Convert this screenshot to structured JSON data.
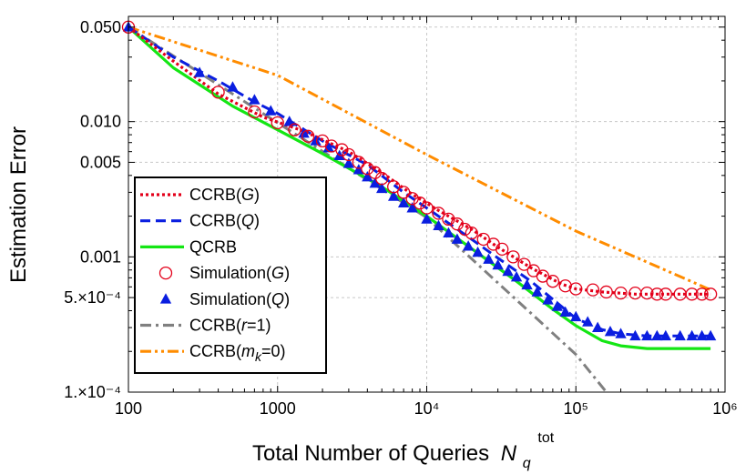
{
  "chart_data": {
    "type": "line",
    "xlabel": "Total Number of Queries",
    "xlabel_symbol": "N",
    "xlabel_sub": "q",
    "xlabel_sup": "tot",
    "ylabel": "Estimation Error",
    "x_scale": "log",
    "y_scale": "log",
    "xlim": [
      100,
      1000000
    ],
    "ylim": [
      0.0001,
      0.06
    ],
    "x_ticks": [
      100,
      1000,
      10000,
      100000,
      1000000
    ],
    "x_tick_labels": [
      "100",
      "1000",
      "10⁴",
      "10⁵",
      "10⁶"
    ],
    "y_ticks": [
      0.05,
      0.01,
      0.005,
      0.001,
      0.0005,
      0.0001
    ],
    "y_tick_labels": [
      "0.050",
      "0.010",
      "0.005",
      "0.001",
      "5.×10⁻⁴",
      "1.×10⁻⁴"
    ],
    "grid": true,
    "legend_position": "lower-left",
    "series": [
      {
        "name": "CCRB(G)",
        "style": "dotted",
        "color": "#e3001a",
        "x": [
          100,
          200,
          400,
          800,
          1500,
          3000,
          5000,
          8000,
          12000,
          20000,
          30000,
          50000,
          80000,
          100000,
          150000,
          250000,
          500000,
          800000
        ],
        "y": [
          0.05,
          0.028,
          0.016,
          0.0108,
          0.0085,
          0.006,
          0.0042,
          0.0029,
          0.0022,
          0.0016,
          0.00118,
          0.00083,
          0.00063,
          0.00058,
          0.00055,
          0.00053,
          0.00053,
          0.00053
        ]
      },
      {
        "name": "CCRB(Q)",
        "style": "dashed",
        "color": "#0a1ee0",
        "x": [
          100,
          200,
          400,
          700,
          1000,
          2000,
          4000,
          7000,
          10000,
          20000,
          30000,
          50000,
          80000,
          100000,
          150000,
          200000,
          300000,
          500000,
          800000
        ],
        "y": [
          0.05,
          0.03,
          0.02,
          0.014,
          0.0115,
          0.0072,
          0.0048,
          0.003,
          0.0023,
          0.00135,
          0.00098,
          0.00066,
          0.00043,
          0.00035,
          0.00029,
          0.00027,
          0.00026,
          0.00026,
          0.00026
        ]
      },
      {
        "name": "QCRB",
        "style": "solid",
        "color": "#14e614",
        "x": [
          100,
          200,
          500,
          1000,
          2000,
          5000,
          10000,
          20000,
          40000,
          70000,
          100000,
          150000,
          200000,
          300000,
          500000,
          800000
        ],
        "y": [
          0.05,
          0.025,
          0.013,
          0.0087,
          0.0058,
          0.0033,
          0.002,
          0.00115,
          0.00066,
          0.00041,
          0.00031,
          0.00024,
          0.00022,
          0.00021,
          0.00021,
          0.00021
        ]
      },
      {
        "name": "Simulation(G)",
        "style": "open-circle",
        "color": "#e3001a",
        "x": [
          100,
          400,
          700,
          1000,
          1300,
          1600,
          2000,
          2300,
          2700,
          3000,
          3500,
          4000,
          4500,
          5000,
          6000,
          7000,
          8000,
          9000,
          10000,
          12000,
          14000,
          16000,
          18000,
          20000,
          24000,
          28000,
          32000,
          38000,
          45000,
          52000,
          60000,
          70000,
          85000,
          100000,
          130000,
          160000,
          200000,
          250000,
          300000,
          350000,
          400000,
          500000,
          600000,
          700000,
          800000
        ],
        "y": [
          0.05,
          0.0165,
          0.0118,
          0.0098,
          0.0087,
          0.0078,
          0.0072,
          0.0066,
          0.0062,
          0.0057,
          0.005,
          0.0045,
          0.0042,
          0.0038,
          0.0033,
          0.003,
          0.0027,
          0.0025,
          0.0023,
          0.0021,
          0.0019,
          0.00175,
          0.0016,
          0.0015,
          0.00135,
          0.00124,
          0.00114,
          0.001,
          0.00088,
          0.00079,
          0.00072,
          0.00066,
          0.00061,
          0.00058,
          0.00057,
          0.00055,
          0.00054,
          0.00054,
          0.00054,
          0.00053,
          0.00053,
          0.00053,
          0.00053,
          0.00053,
          0.00053
        ]
      },
      {
        "name": "Simulation(Q)",
        "style": "filled-triangle",
        "color": "#0a1ee0",
        "x": [
          100,
          300,
          500,
          700,
          900,
          1200,
          1500,
          1800,
          2200,
          2600,
          3000,
          3500,
          4000,
          4500,
          5000,
          6000,
          7000,
          8000,
          10000,
          12000,
          14000,
          16000,
          19000,
          22000,
          26000,
          30000,
          35000,
          40000,
          47000,
          55000,
          65000,
          75000,
          85000,
          100000,
          120000,
          140000,
          170000,
          200000,
          250000,
          300000,
          350000,
          400000,
          500000,
          600000,
          700000,
          800000
        ],
        "y": [
          0.05,
          0.023,
          0.018,
          0.0145,
          0.012,
          0.01,
          0.0082,
          0.0072,
          0.0064,
          0.0056,
          0.0049,
          0.0044,
          0.0039,
          0.0035,
          0.0032,
          0.0028,
          0.0025,
          0.0023,
          0.0019,
          0.0017,
          0.0015,
          0.00135,
          0.0012,
          0.00108,
          0.00096,
          0.00087,
          0.00078,
          0.00071,
          0.00062,
          0.00055,
          0.00048,
          0.00043,
          0.00039,
          0.00036,
          0.00033,
          0.0003,
          0.00028,
          0.00027,
          0.00026,
          0.00026,
          0.00026,
          0.00026,
          0.00026,
          0.00026,
          0.00026,
          0.00026
        ]
      },
      {
        "name": "CCRB(r=1)",
        "style": "dash-dot",
        "color": "#808080",
        "x": [
          100,
          1000,
          10000,
          100000,
          160000
        ],
        "y": [
          0.05,
          0.0098,
          0.00195,
          0.00019,
          0.0001
        ]
      },
      {
        "name": "CCRB(m_k=0)",
        "style": "dash-dot-dot",
        "color": "#ff8c00",
        "x": [
          100,
          1000,
          10000,
          100000,
          800000
        ],
        "y": [
          0.05,
          0.022,
          0.0057,
          0.00155,
          0.00057
        ]
      }
    ]
  },
  "legend": [
    {
      "series": 0,
      "prefix": "CCRB(",
      "italic": "G",
      "suffix": ")"
    },
    {
      "series": 1,
      "prefix": "CCRB(",
      "italic": "Q",
      "suffix": ")"
    },
    {
      "series": 2,
      "prefix": "QCRB",
      "italic": "",
      "suffix": ""
    },
    {
      "series": 3,
      "prefix": "Simulation(",
      "italic": "G",
      "suffix": ")"
    },
    {
      "series": 4,
      "prefix": "Simulation(",
      "italic": "Q",
      "suffix": ")"
    },
    {
      "series": 5,
      "prefix": "CCRB(",
      "italic": "r",
      "suffix": "=1)"
    },
    {
      "series": 6,
      "prefix": "CCRB(",
      "italic": "m",
      "sub": "k",
      "suffix": "=0)"
    }
  ]
}
